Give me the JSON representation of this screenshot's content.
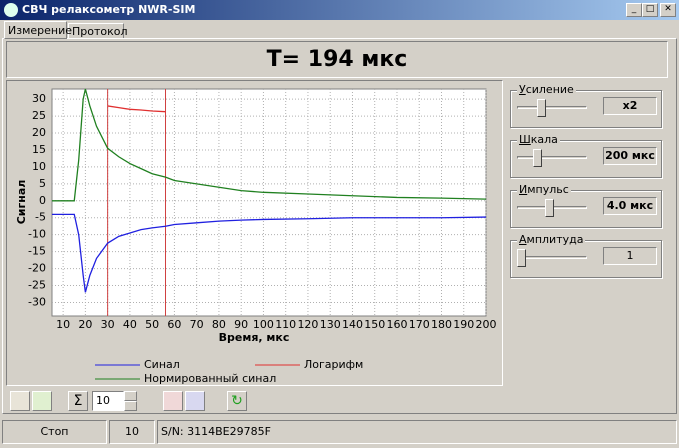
{
  "window": {
    "title": "СВЧ релаксометр NWR-SIM"
  },
  "tabs": [
    "Измерение",
    "Протокол"
  ],
  "result": "T= 194 мкс",
  "chart_data": {
    "type": "line",
    "x_label": "Время, мкс",
    "y_label": "Сигнал",
    "x": [
      5,
      10,
      15,
      17,
      19,
      20,
      22,
      25,
      30,
      35,
      40,
      45,
      50,
      56,
      60,
      70,
      80,
      90,
      100,
      120,
      140,
      160,
      180,
      200
    ],
    "series": [
      {
        "name": "Синал",
        "color": "#2020e0",
        "values": [
          -4,
          -4,
          -4,
          -10,
          -22,
          -27,
          -22,
          -17,
          -12.5,
          -10.5,
          -9.5,
          -8.5,
          -8,
          -7.5,
          -7,
          -6.5,
          -6,
          -5.7,
          -5.5,
          -5.3,
          -5,
          -5,
          -5,
          -4.8
        ]
      },
      {
        "name": "Логарифм",
        "color": "#e03030",
        "values": [
          null,
          null,
          null,
          null,
          null,
          null,
          null,
          null,
          28,
          27.5,
          27,
          26.8,
          26.5,
          26.3,
          null,
          null,
          null,
          null,
          null,
          null,
          null,
          null,
          null,
          null
        ]
      },
      {
        "name": "Нормированный синал",
        "color": "#208020",
        "values": [
          0,
          0,
          0,
          12,
          30,
          33,
          28,
          22,
          15.5,
          13,
          11,
          9.5,
          8,
          7,
          6,
          5,
          4,
          3,
          2.5,
          2,
          1.5,
          1,
          0.8,
          0.5
        ]
      }
    ],
    "cursors": [
      30,
      56
    ],
    "cursor_color": "#d04040",
    "xlim": [
      5,
      200
    ],
    "ylim": [
      -34,
      33
    ],
    "xticks": [
      10,
      20,
      30,
      40,
      50,
      60,
      70,
      80,
      90,
      100,
      110,
      120,
      130,
      140,
      150,
      160,
      170,
      180,
      190,
      200
    ],
    "yticks": [
      -30,
      -25,
      -20,
      -15,
      -10,
      -5,
      0,
      5,
      10,
      15,
      20,
      25,
      30
    ],
    "grid": true
  },
  "controls": [
    {
      "label": "Усиление",
      "value": "x2"
    },
    {
      "label": "Шкала",
      "value": "200 мкс"
    },
    {
      "label": "Импульс",
      "value": "4.0 мкс"
    },
    {
      "label": "Амплитуда",
      "value": "1"
    }
  ],
  "toolbar": {
    "spin_value": "10"
  },
  "status": [
    "Стоп",
    "10",
    "S/N: 3114BE29785F"
  ]
}
